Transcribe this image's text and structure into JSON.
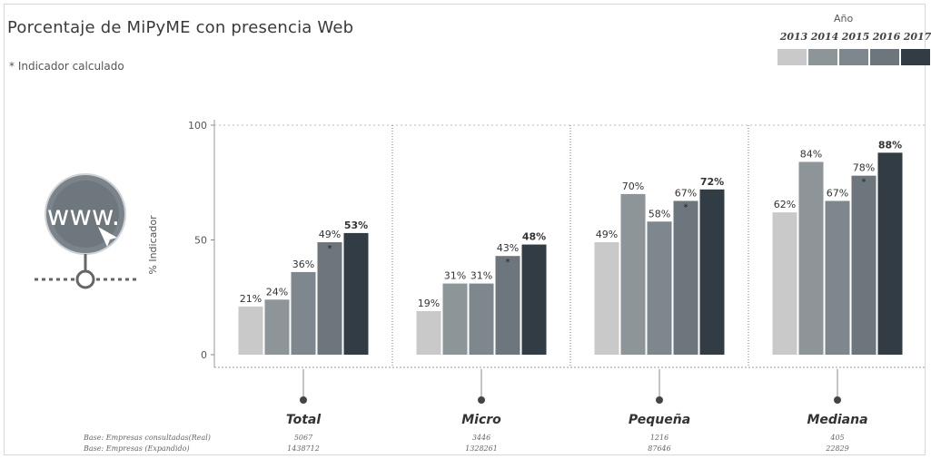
{
  "header": {
    "title": "Porcentaje de MiPyME con presencia Web",
    "subtitle": "* Indicador calculado"
  },
  "legend": {
    "title": "Año",
    "years": [
      "2013",
      "2014",
      "2015",
      "2016",
      "2017"
    ],
    "colors": [
      "#c9c9c9",
      "#8d9599",
      "#7e878d",
      "#6c767c",
      "#323c45"
    ]
  },
  "chart_data": {
    "type": "bar",
    "ylabel": "% Indicador",
    "ylim": [
      0,
      100
    ],
    "yticks": [
      "0",
      "50",
      "100"
    ],
    "categories": [
      "Total",
      "Micro",
      "Pequeña",
      "Mediana"
    ],
    "series_years": [
      "2013",
      "2014",
      "2015",
      "2016",
      "2017"
    ],
    "groups": [
      {
        "name": "Total",
        "values": [
          21,
          24,
          36,
          49,
          53
        ],
        "labels": [
          "21%",
          "24%",
          "36%",
          "49%",
          "53%"
        ],
        "starred": [
          false,
          false,
          false,
          true,
          false
        ]
      },
      {
        "name": "Micro",
        "values": [
          19,
          31,
          31,
          43,
          48
        ],
        "labels": [
          "19%",
          "31%",
          "31%",
          "43%",
          "48%"
        ],
        "starred": [
          false,
          false,
          false,
          true,
          false
        ]
      },
      {
        "name": "Pequeña",
        "values": [
          49,
          70,
          58,
          67,
          72
        ],
        "labels": [
          "49%",
          "70%",
          "58%",
          "67%",
          "72%"
        ],
        "starred": [
          false,
          false,
          false,
          true,
          false
        ]
      },
      {
        "name": "Mediana",
        "values": [
          62,
          84,
          67,
          78,
          88
        ],
        "labels": [
          "62%",
          "84%",
          "67%",
          "78%",
          "88%"
        ],
        "starred": [
          false,
          false,
          false,
          true,
          false
        ]
      }
    ],
    "grid": false
  },
  "footer": {
    "row1_label": "Base: Empresas consultadas(Real)",
    "row2_label": "Base: Empresas (Expandido)",
    "row1_values": [
      "5067",
      "3446",
      "1216",
      "405"
    ],
    "row2_values": [
      "1438712",
      "1328261",
      "87646",
      "22829"
    ]
  }
}
